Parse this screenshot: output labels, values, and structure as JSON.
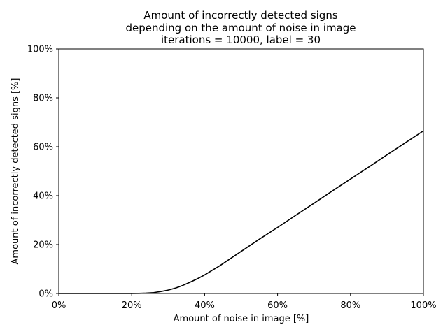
{
  "chart_data": {
    "type": "line",
    "title_lines": [
      "Amount of incorrectly detected signs",
      "depending on the amount of noise in image",
      "iterations = 10000, label = 30"
    ],
    "xlabel": "Amount of noise in image [%]",
    "ylabel": "Amount of incorrectly detected signs [%]",
    "xlim": [
      0,
      100
    ],
    "ylim": [
      0,
      100
    ],
    "x_ticks": [
      0,
      20,
      40,
      60,
      80,
      100
    ],
    "y_ticks": [
      0,
      20,
      40,
      60,
      80,
      100
    ],
    "x_tick_labels": [
      "0%",
      "20%",
      "40%",
      "60%",
      "80%",
      "100%"
    ],
    "y_tick_labels": [
      "0%",
      "20%",
      "40%",
      "60%",
      "80%",
      "100%"
    ],
    "grid": false,
    "legend": "none",
    "line_color": "#000000",
    "series": [
      {
        "x": [
          0,
          5,
          10,
          15,
          20,
          22,
          24,
          26,
          28,
          30,
          32,
          34,
          36,
          38,
          40,
          42,
          44,
          46,
          48,
          50,
          55,
          60,
          65,
          70,
          75,
          80,
          85,
          90,
          95,
          100
        ],
        "values": [
          0,
          0,
          0,
          0,
          0,
          0.05,
          0.15,
          0.35,
          0.8,
          1.4,
          2.2,
          3.3,
          4.6,
          6.0,
          7.6,
          9.4,
          11.2,
          13.2,
          15.2,
          17.2,
          22.2,
          27.0,
          32.0,
          36.9,
          41.9,
          46.8,
          51.7,
          56.7,
          61.6,
          66.5
        ]
      }
    ]
  }
}
